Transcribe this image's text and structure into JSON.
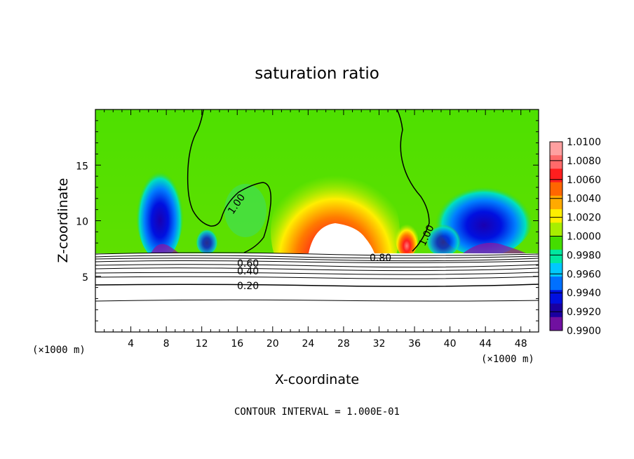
{
  "chart_data": {
    "type": "heatmap",
    "title": "saturation ratio",
    "xlabel": "X-coordinate",
    "ylabel": "Z-coordinate",
    "x_unit_left": "(×1000 m)",
    "x_unit_right": "(×1000 m)",
    "xlim": [
      0,
      50
    ],
    "ylim": [
      0,
      20
    ],
    "x_ticks": [
      4,
      8,
      12,
      16,
      20,
      24,
      28,
      32,
      36,
      40,
      44,
      48
    ],
    "y_ticks": [
      5,
      10,
      15
    ],
    "colorbar": {
      "ticks": [
        "1.0100",
        "1.0080",
        "1.0060",
        "1.0040",
        "1.0020",
        "1.0000",
        "0.9980",
        "0.9960",
        "0.9940",
        "0.9920",
        "0.9900"
      ],
      "colors": [
        "#ffa0a0",
        "#ff6a6a",
        "#ff1e1e",
        "#ff6600",
        "#ffaa00",
        "#ffee00",
        "#a8ee00",
        "#44dd00",
        "#00e8a0",
        "#00c8ff",
        "#0070ff",
        "#0010e0",
        "#1a00a0",
        "#7010a0"
      ]
    },
    "contour_labels": [
      "1.00",
      "1.00",
      "0.80",
      "0.60",
      "0.40",
      "0.20"
    ],
    "contour_interval_text": "CONTOUR INTERVAL = 1.000E-01"
  }
}
